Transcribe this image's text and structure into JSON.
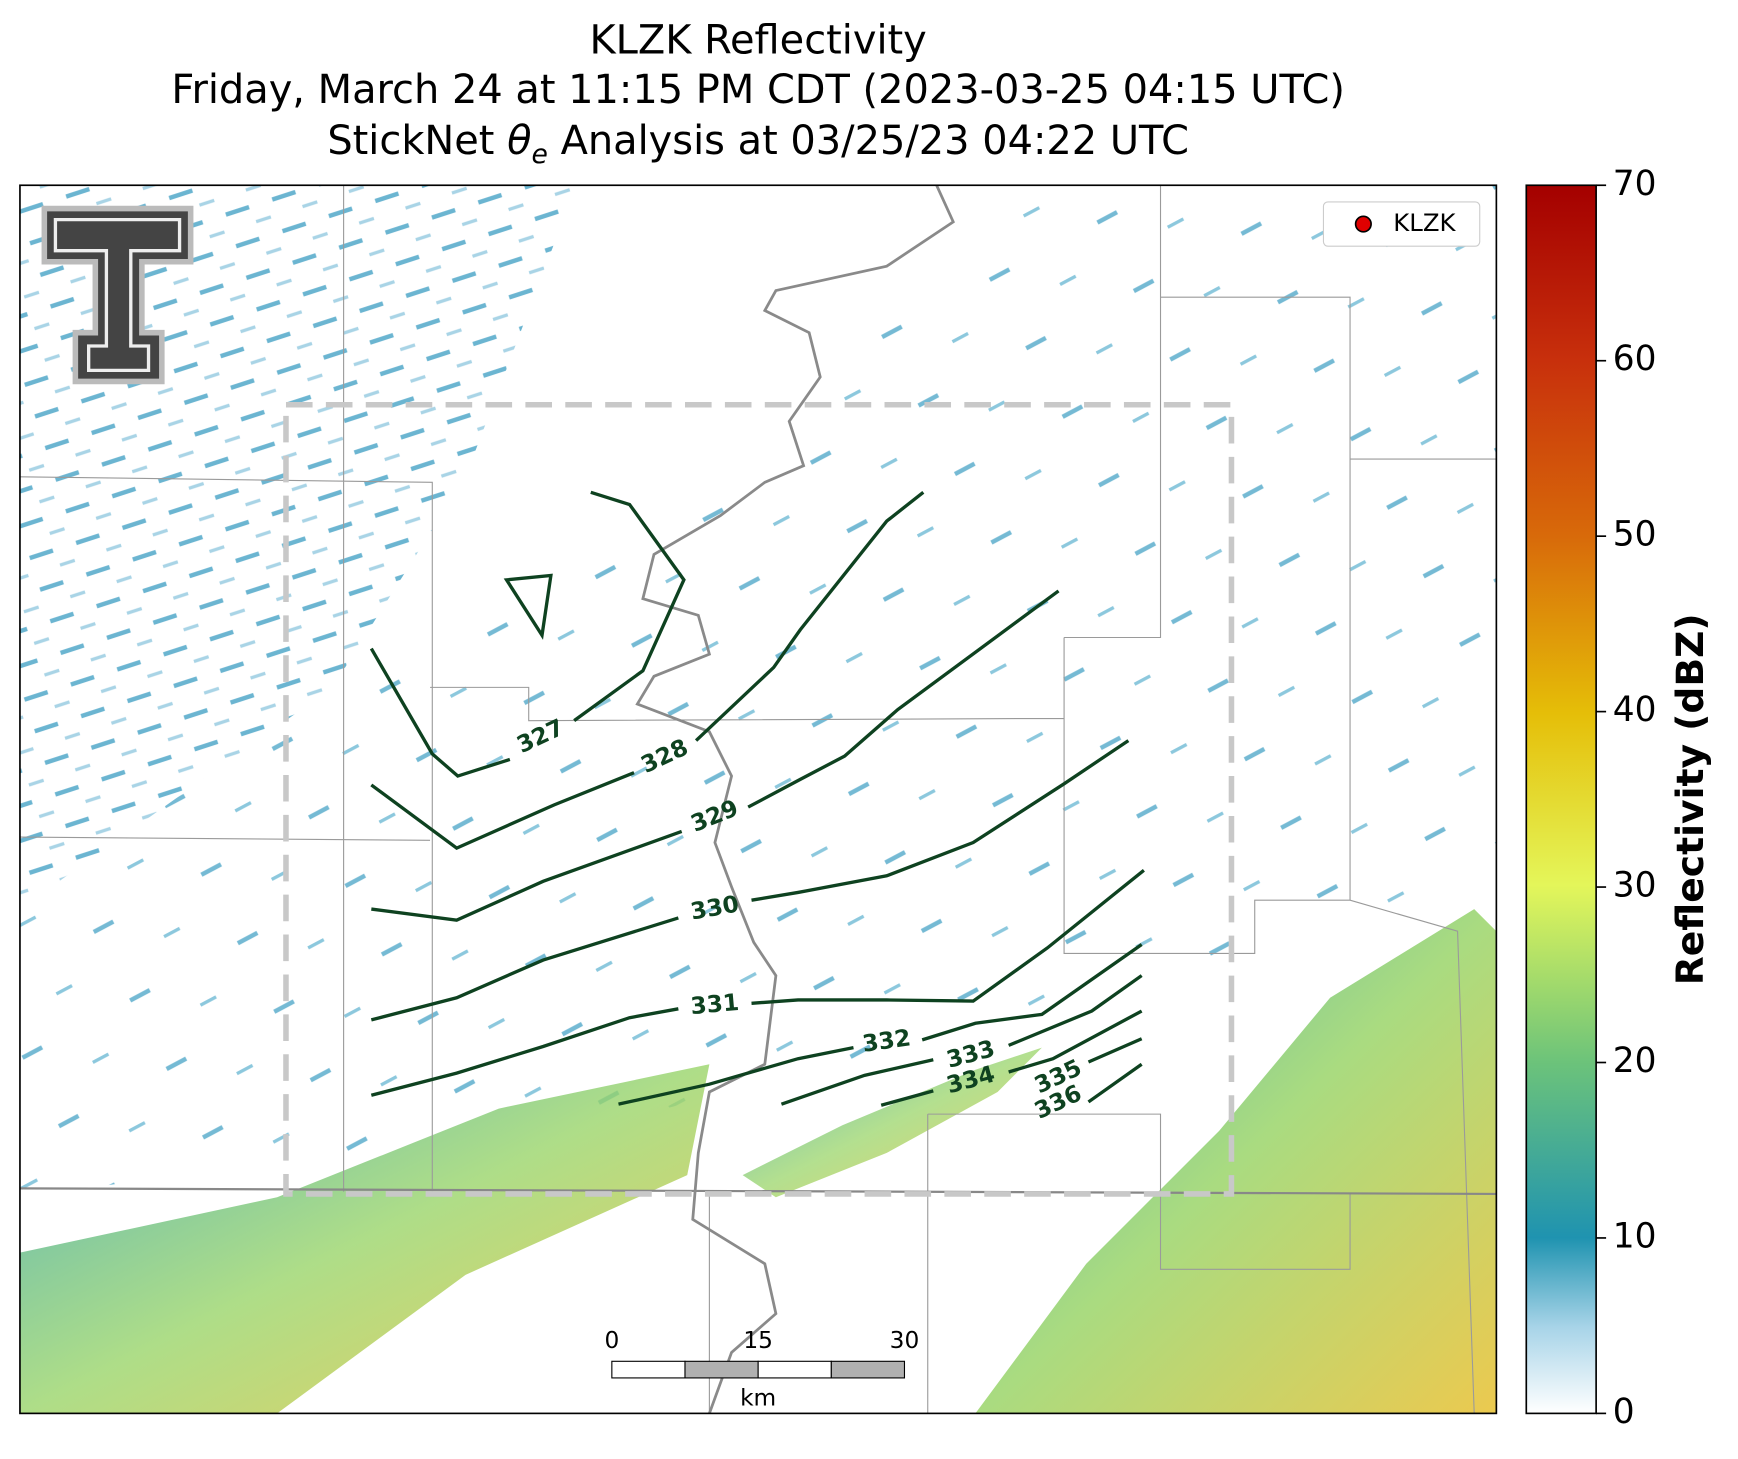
{
  "title": {
    "line1": "KLZK Reflectivity",
    "line2": "Friday, March 24 at 11:15 PM CDT (2023-03-25 04:15 UTC)",
    "line3_prefix": "StickNet ",
    "line3_symbol": "θ",
    "line3_subscript": "e",
    "line3_suffix": " Analysis at 03/25/23 04:22 UTC"
  },
  "legend": {
    "label": "KLZK",
    "color": "#e00000"
  },
  "colorbar": {
    "label": "Reflectivity (dBZ)",
    "lim": [
      0,
      70
    ],
    "ticks": [
      0,
      10,
      20,
      30,
      40,
      50,
      60,
      70
    ]
  },
  "contour_labels": [
    327,
    328,
    329,
    330,
    331,
    332,
    333,
    334,
    335,
    336
  ],
  "scale_bar": {
    "ticks": [
      0,
      15,
      30
    ],
    "unit": "km"
  }
}
